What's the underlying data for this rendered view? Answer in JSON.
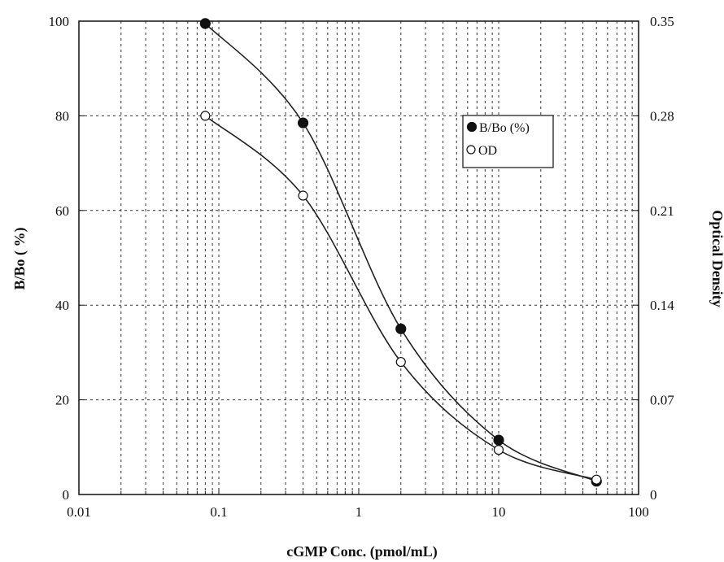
{
  "chart_data": {
    "type": "line",
    "x_scale": "log",
    "xlim": [
      0.01,
      100
    ],
    "ylim_left": [
      0,
      100
    ],
    "ylim_right": [
      0,
      0.35
    ],
    "xlabel": "cGMP Conc. (pmol/mL)",
    "ylabel_left": "B/Bo ( %)",
    "ylabel_right": "Optical Density",
    "x_ticks": [
      "0.01",
      "0.1",
      "1",
      "10",
      "100"
    ],
    "y_ticks_left": [
      "0",
      "20",
      "40",
      "60",
      "80",
      "100"
    ],
    "y_ticks_right": [
      "0",
      "0.07",
      "0.14",
      "0.21",
      "0.28",
      "0.35"
    ],
    "grid": true,
    "legend_position": "upper-right",
    "series": [
      {
        "name": "B/Bo (%)",
        "marker": "filled-circle",
        "axis": "left",
        "x": [
          0.08,
          0.4,
          2,
          10,
          50
        ],
        "y": [
          99.5,
          78.5,
          35,
          11.5,
          2.8
        ]
      },
      {
        "name": "OD",
        "marker": "open-circle",
        "axis": "right",
        "x": [
          0.08,
          0.4,
          2,
          10,
          50
        ],
        "y": [
          0.28,
          0.221,
          0.098,
          0.033,
          0.011
        ]
      }
    ]
  }
}
